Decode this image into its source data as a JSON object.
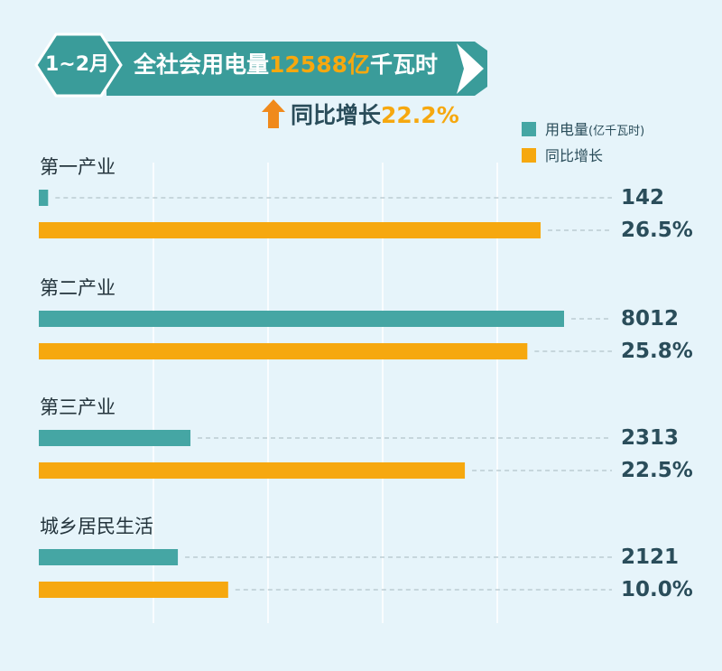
{
  "banner": {
    "period": "1~2月",
    "title_prefix": "全社会用电量",
    "title_value": "12588亿",
    "title_unit": "千瓦时"
  },
  "total_growth": {
    "label": "同比增长",
    "value": "22.2%"
  },
  "legend": {
    "usage": {
      "label": "用电量",
      "unit": "(亿千瓦时)"
    },
    "growth": {
      "label": "同比增长"
    }
  },
  "colors": {
    "usage": "#45a6a4",
    "growth": "#f6a80f",
    "banner": "#3a9c9a",
    "background": "#e6f4fa"
  },
  "chart_data": {
    "type": "bar",
    "orientation": "horizontal",
    "categories": [
      "第一产业",
      "第二产业",
      "第三产业",
      "城乡居民生活"
    ],
    "series": [
      {
        "name": "用电量",
        "unit": "亿千瓦时",
        "values": [
          142,
          8012,
          2313,
          2121
        ],
        "labels": [
          "142",
          "8012",
          "2313",
          "2121"
        ]
      },
      {
        "name": "同比增长",
        "unit": "%",
        "values": [
          26.5,
          25.8,
          22.5,
          10.0
        ],
        "labels": [
          "26.5%",
          "25.8%",
          "22.5%",
          "10.0%"
        ]
      }
    ],
    "grid": true,
    "legend_position": "top-right"
  }
}
